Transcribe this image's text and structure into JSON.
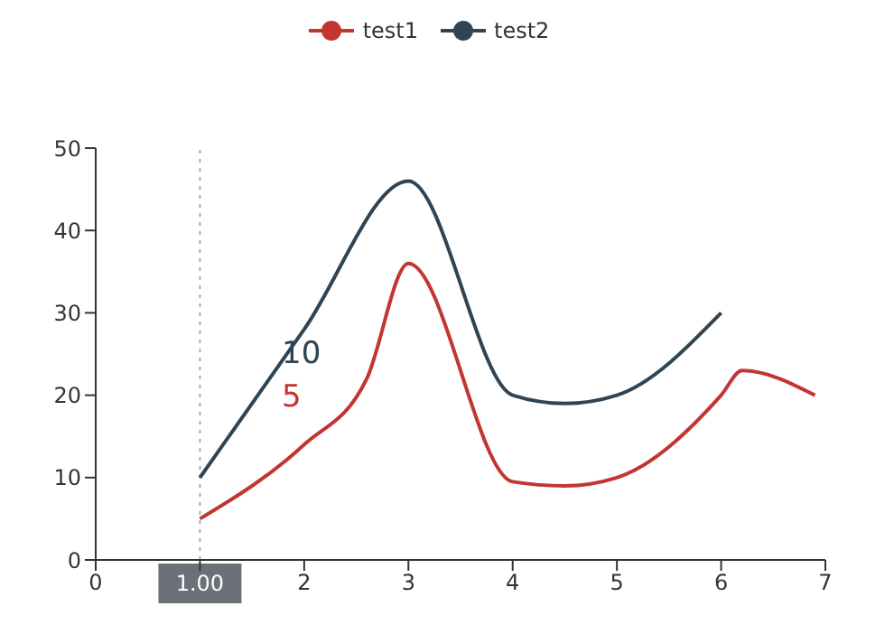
{
  "chart_data": {
    "type": "line",
    "legend": "top",
    "marker": "none",
    "grid": false,
    "xlim": [
      0,
      7
    ],
    "xticks": [
      0,
      {
        "value": 1,
        "label": null
      },
      2,
      3,
      4,
      5,
      6,
      7
    ],
    "ylim": [
      0,
      50
    ],
    "yticks": [
      0,
      10,
      20,
      30,
      40,
      50
    ],
    "series": [
      {
        "name": "test1",
        "color": "#c23531",
        "x": [
          1,
          2,
          2.6,
          3,
          4,
          4.5,
          5,
          6,
          6.2,
          6.9
        ],
        "values": [
          5,
          14,
          22,
          36,
          9.5,
          9,
          10,
          20,
          23,
          20
        ]
      },
      {
        "name": "test2",
        "color": "#2f4554",
        "x": [
          1,
          2,
          3,
          4,
          4.5,
          5,
          6
        ],
        "values": [
          10,
          28,
          46,
          20,
          19,
          20,
          30
        ]
      }
    ],
    "ref_lines": [
      {
        "axis": "x",
        "value": 1,
        "label": "1.00",
        "color": "#aaaaaa",
        "line_style": "dotted"
      }
    ],
    "annotations": [
      "10",
      "5"
    ]
  }
}
